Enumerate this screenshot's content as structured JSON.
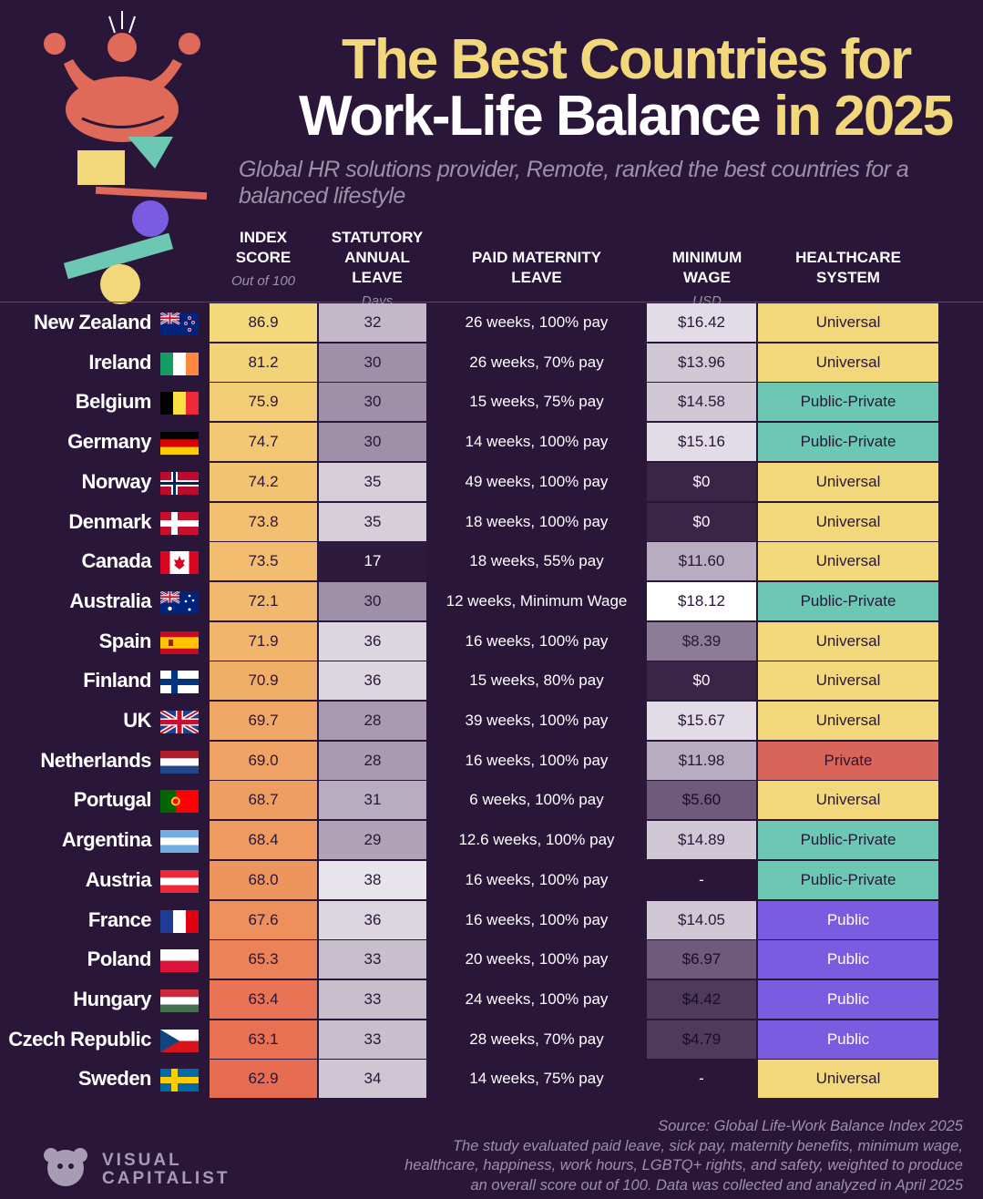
{
  "header": {
    "title_line1": "The Best Countries for",
    "title_line2_a": "Work-Life Balance ",
    "title_line2_b": "in 2025",
    "subtitle": "Global HR solutions provider, Remote, ranked the best countries for a balanced lifestyle"
  },
  "columns": {
    "index": {
      "l1": "INDEX",
      "l2": "SCORE",
      "sub": "Out of 100"
    },
    "leave": {
      "l1": "STATUTORY",
      "l2": "ANNUAL LEAVE",
      "sub": "Days"
    },
    "maternity": {
      "l1": "PAID MATERNITY",
      "l2": "LEAVE"
    },
    "wage": {
      "l1": "MINIMUM WAGE",
      "sub": "USD"
    },
    "health": {
      "l1": "HEALTHCARE",
      "l2": "SYSTEM"
    }
  },
  "colors": {
    "background": "#2a1638",
    "yellow": "#f2d87a",
    "universal": "#f2d87a",
    "public_private": "#6cc7b3",
    "private": "#d9645a",
    "public": "#7a5ce0"
  },
  "chart_data": {
    "type": "table",
    "rows": [
      {
        "country": "New Zealand",
        "flag": "nz-flag-icon",
        "index": "86.9",
        "leave": "32",
        "maternity": "26 weeks, 100% pay",
        "wage": "$16.42",
        "health": "Universal"
      },
      {
        "country": "Ireland",
        "flag": "ie-flag-icon",
        "index": "81.2",
        "leave": "30",
        "maternity": "26 weeks, 70% pay",
        "wage": "$13.96",
        "health": "Universal"
      },
      {
        "country": "Belgium",
        "flag": "be-flag-icon",
        "index": "75.9",
        "leave": "30",
        "maternity": "15 weeks, 75% pay",
        "wage": "$14.58",
        "health": "Public-Private"
      },
      {
        "country": "Germany",
        "flag": "de-flag-icon",
        "index": "74.7",
        "leave": "30",
        "maternity": "14 weeks, 100% pay",
        "wage": "$15.16",
        "health": "Public-Private"
      },
      {
        "country": "Norway",
        "flag": "no-flag-icon",
        "index": "74.2",
        "leave": "35",
        "maternity": "49 weeks, 100% pay",
        "wage": "$0",
        "health": "Universal"
      },
      {
        "country": "Denmark",
        "flag": "dk-flag-icon",
        "index": "73.8",
        "leave": "35",
        "maternity": "18 weeks, 100% pay",
        "wage": "$0",
        "health": "Universal"
      },
      {
        "country": "Canada",
        "flag": "ca-flag-icon",
        "index": "73.5",
        "leave": "17",
        "maternity": "18 weeks, 55% pay",
        "wage": "$11.60",
        "health": "Universal"
      },
      {
        "country": "Australia",
        "flag": "au-flag-icon",
        "index": "72.1",
        "leave": "30",
        "maternity": "12 weeks, Minimum Wage",
        "wage": "$18.12",
        "health": "Public-Private"
      },
      {
        "country": "Spain",
        "flag": "es-flag-icon",
        "index": "71.9",
        "leave": "36",
        "maternity": "16 weeks, 100% pay",
        "wage": "$8.39",
        "health": "Universal"
      },
      {
        "country": "Finland",
        "flag": "fi-flag-icon",
        "index": "70.9",
        "leave": "36",
        "maternity": "15 weeks, 80% pay",
        "wage": "$0",
        "health": "Universal"
      },
      {
        "country": "UK",
        "flag": "uk-flag-icon",
        "index": "69.7",
        "leave": "28",
        "maternity": "39 weeks, 100% pay",
        "wage": "$15.67",
        "health": "Universal"
      },
      {
        "country": "Netherlands",
        "flag": "nl-flag-icon",
        "index": "69.0",
        "leave": "28",
        "maternity": "16 weeks, 100% pay",
        "wage": "$11.98",
        "health": "Private"
      },
      {
        "country": "Portugal",
        "flag": "pt-flag-icon",
        "index": "68.7",
        "leave": "31",
        "maternity": "6 weeks, 100% pay",
        "wage": "$5.60",
        "health": "Universal"
      },
      {
        "country": "Argentina",
        "flag": "ar-flag-icon",
        "index": "68.4",
        "leave": "29",
        "maternity": "12.6 weeks, 100% pay",
        "wage": "$14.89",
        "health": "Public-Private"
      },
      {
        "country": "Austria",
        "flag": "at-flag-icon",
        "index": "68.0",
        "leave": "38",
        "maternity": "16 weeks, 100% pay",
        "wage": "-",
        "health": "Public-Private"
      },
      {
        "country": "France",
        "flag": "fr-flag-icon",
        "index": "67.6",
        "leave": "36",
        "maternity": "16 weeks, 100% pay",
        "wage": "$14.05",
        "health": "Public"
      },
      {
        "country": "Poland",
        "flag": "pl-flag-icon",
        "index": "65.3",
        "leave": "33",
        "maternity": "20 weeks, 100% pay",
        "wage": "$6.97",
        "health": "Public"
      },
      {
        "country": "Hungary",
        "flag": "hu-flag-icon",
        "index": "63.4",
        "leave": "33",
        "maternity": "24 weeks, 100% pay",
        "wage": "$4.42",
        "health": "Public"
      },
      {
        "country": "Czech Republic",
        "flag": "cz-flag-icon",
        "index": "63.1",
        "leave": "33",
        "maternity": "28 weeks, 70% pay",
        "wage": "$4.79",
        "health": "Public"
      },
      {
        "country": "Sweden",
        "flag": "se-flag-icon",
        "index": "62.9",
        "leave": "34",
        "maternity": "14 weeks, 75% pay",
        "wage": "-",
        "health": "Universal"
      }
    ]
  },
  "footer": {
    "source_lines": [
      "Source: Global Life-Work Balance Index 2025",
      "The study evaluated paid leave, sick pay, maternity benefits, minimum wage,",
      "healthcare, happiness, work hours, LGBTQ+ rights, and safety, weighted to produce",
      "an overall score out of 100. Data was collected and analyzed in April 2025"
    ],
    "logo_line1": "VISUAL",
    "logo_line2": "CAPITALIST"
  }
}
